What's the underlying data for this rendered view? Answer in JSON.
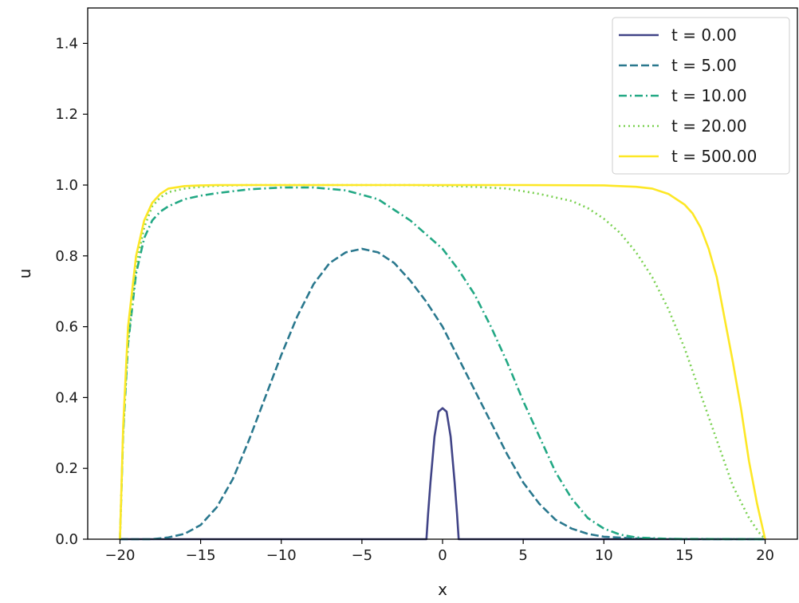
{
  "chart_data": {
    "type": "line",
    "title": "",
    "xlabel": "x",
    "ylabel": "u",
    "xlim": [
      -22,
      22
    ],
    "ylim": [
      0,
      1.5
    ],
    "xticks": [
      -20,
      -15,
      -10,
      -5,
      0,
      5,
      10,
      15,
      20
    ],
    "xtick_labels": [
      "−20",
      "−15",
      "−10",
      "−5",
      "0",
      "5",
      "10",
      "15",
      "20"
    ],
    "yticks": [
      0.0,
      0.2,
      0.4,
      0.6,
      0.8,
      1.0,
      1.2,
      1.4
    ],
    "ytick_labels": [
      "0.0",
      "0.2",
      "0.4",
      "0.6",
      "0.8",
      "1.0",
      "1.2",
      "1.4"
    ],
    "grid": false,
    "legend_position": "top-right",
    "series": [
      {
        "name": "t = 0.00",
        "color": "#414487",
        "style": "solid",
        "x": [
          -20,
          -1,
          -0.9,
          -0.75,
          -0.5,
          -0.25,
          0,
          0.25,
          0.5,
          0.75,
          0.9,
          1,
          20
        ],
        "y": [
          0,
          0,
          0.07,
          0.16,
          0.29,
          0.36,
          0.37,
          0.36,
          0.29,
          0.16,
          0.07,
          0,
          0
        ]
      },
      {
        "name": "t = 5.00",
        "color": "#2a788e",
        "style": "dashed",
        "x": [
          -20,
          -18,
          -17,
          -16,
          -15,
          -14,
          -13,
          -12,
          -11,
          -10,
          -9,
          -8,
          -7,
          -6,
          -5,
          -4,
          -3,
          -2,
          -1,
          0,
          1,
          2,
          3,
          4,
          5,
          6,
          7,
          8,
          9,
          10,
          12,
          15,
          20
        ],
        "y": [
          0,
          0,
          0.005,
          0.015,
          0.04,
          0.09,
          0.17,
          0.28,
          0.4,
          0.52,
          0.63,
          0.72,
          0.78,
          0.81,
          0.82,
          0.81,
          0.78,
          0.73,
          0.67,
          0.6,
          0.51,
          0.42,
          0.33,
          0.24,
          0.16,
          0.1,
          0.055,
          0.03,
          0.015,
          0.007,
          0.002,
          0,
          0
        ]
      },
      {
        "name": "t = 10.00",
        "color": "#22a884",
        "style": "dashdot",
        "x": [
          -20,
          -19.8,
          -19.5,
          -19,
          -18.5,
          -18,
          -17.5,
          -17,
          -16,
          -15,
          -14,
          -12,
          -10,
          -8,
          -6,
          -4,
          -2,
          0,
          1,
          2,
          3,
          4,
          5,
          6,
          7,
          8,
          9,
          10,
          11,
          12,
          14,
          20
        ],
        "y": [
          0,
          0.3,
          0.55,
          0.75,
          0.85,
          0.9,
          0.925,
          0.94,
          0.96,
          0.97,
          0.977,
          0.988,
          0.993,
          0.993,
          0.985,
          0.96,
          0.9,
          0.82,
          0.76,
          0.69,
          0.6,
          0.5,
          0.39,
          0.29,
          0.19,
          0.115,
          0.06,
          0.03,
          0.013,
          0.005,
          0.001,
          0
        ]
      },
      {
        "name": "t = 20.00",
        "color": "#7ad151",
        "style": "dotted",
        "x": [
          -20,
          -19.8,
          -19.5,
          -19,
          -18.5,
          -18,
          -17.5,
          -17,
          -16,
          -15,
          -14,
          -12,
          -10,
          -8,
          -6,
          -4,
          -2,
          0,
          2,
          4,
          6,
          8,
          9,
          10,
          11,
          12,
          13,
          14,
          15,
          16,
          17,
          18,
          19,
          19.6,
          20
        ],
        "y": [
          0,
          0.3,
          0.56,
          0.77,
          0.88,
          0.94,
          0.965,
          0.98,
          0.99,
          0.995,
          0.998,
          1.0,
          1.0,
          1.0,
          1.0,
          1.0,
          1.0,
          0.998,
          0.995,
          0.99,
          0.975,
          0.955,
          0.935,
          0.905,
          0.865,
          0.81,
          0.74,
          0.65,
          0.54,
          0.41,
          0.28,
          0.15,
          0.06,
          0.02,
          0
        ]
      },
      {
        "name": "t = 500.00",
        "color": "#fde725",
        "style": "solid",
        "x": [
          -20,
          -19.8,
          -19.5,
          -19,
          -18.5,
          -18,
          -17.5,
          -17,
          -16,
          -15,
          -14,
          -12,
          -10,
          -5,
          0,
          5,
          10,
          12,
          13,
          14,
          15,
          15.5,
          16,
          16.5,
          17,
          17.5,
          18,
          18.5,
          19,
          19.5,
          20
        ],
        "y": [
          0,
          0.32,
          0.6,
          0.8,
          0.9,
          0.95,
          0.975,
          0.99,
          0.997,
          0.999,
          1.0,
          1.0,
          1.0,
          1.0,
          1.0,
          1.0,
          0.999,
          0.995,
          0.99,
          0.975,
          0.945,
          0.92,
          0.88,
          0.82,
          0.74,
          0.62,
          0.5,
          0.37,
          0.22,
          0.1,
          0
        ]
      }
    ]
  }
}
